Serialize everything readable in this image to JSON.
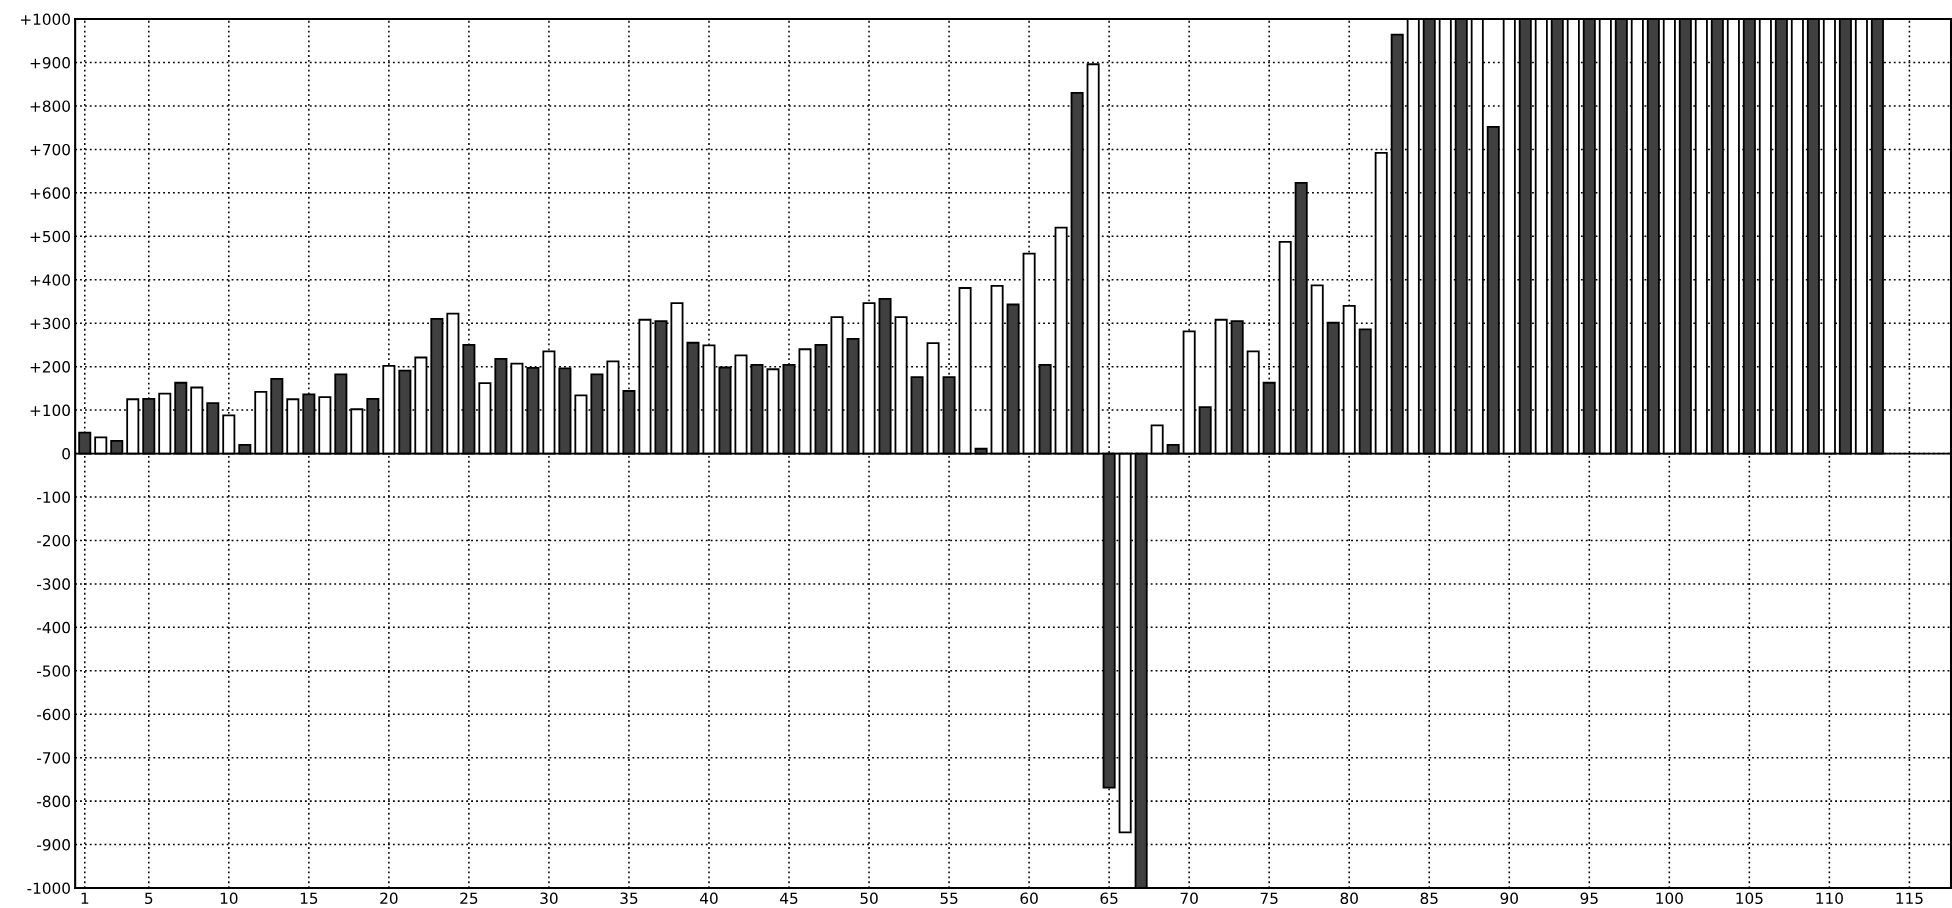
{
  "chart_data": {
    "type": "bar",
    "series": [
      {
        "color": "#404040",
        "x": [
          1,
          3,
          5,
          7,
          9,
          11,
          13,
          15,
          17,
          19,
          21,
          23,
          25,
          27,
          29,
          31,
          33,
          35,
          37,
          39,
          41,
          43,
          45,
          47,
          49,
          51,
          53,
          55,
          57,
          59,
          61,
          63,
          65,
          67,
          69,
          71,
          73,
          75,
          77,
          79,
          81,
          83,
          85,
          87,
          89,
          91,
          93,
          95,
          97,
          99,
          101,
          103,
          105,
          107,
          109,
          111,
          113
        ],
        "values": [
          48,
          29,
          126,
          163,
          116,
          20,
          172,
          136,
          182,
          126,
          191,
          310,
          250,
          218,
          197,
          196,
          182,
          144,
          305,
          255,
          198,
          204,
          204,
          250,
          264,
          356,
          176,
          176,
          11,
          343,
          204,
          830,
          -769,
          -1000,
          20,
          107,
          305,
          163,
          623,
          301,
          286,
          964,
          1000,
          1000,
          752,
          1000,
          1000,
          1000,
          1000,
          1000,
          1000,
          1000,
          1000,
          1000,
          1000,
          1000,
          1000
        ]
      },
      {
        "color": "#ffffff",
        "x": [
          2,
          4,
          6,
          8,
          10,
          12,
          14,
          16,
          18,
          20,
          22,
          24,
          26,
          28,
          30,
          32,
          34,
          36,
          38,
          40,
          42,
          44,
          46,
          48,
          50,
          52,
          54,
          56,
          58,
          60,
          62,
          64,
          66,
          68,
          70,
          72,
          74,
          76,
          78,
          80,
          82,
          84,
          86,
          88,
          90,
          92,
          94,
          96,
          98,
          100,
          102,
          104,
          106,
          108,
          110,
          112
        ],
        "values": [
          37,
          125,
          138,
          152,
          88,
          142,
          125,
          130,
          102,
          202,
          221,
          322,
          162,
          207,
          235,
          134,
          212,
          308,
          346,
          249,
          226,
          194,
          240,
          314,
          346,
          314,
          254,
          381,
          386,
          460,
          520,
          896,
          -872,
          65,
          281,
          308,
          235,
          487,
          387,
          340,
          692,
          1000,
          1000,
          1000,
          1000,
          1000,
          1000,
          1000,
          1000,
          1000,
          1000,
          1000,
          1000,
          1000,
          1000,
          1000
        ]
      }
    ],
    "xlim": [
      0.4,
      117.6
    ],
    "xticks": [
      1,
      5,
      10,
      15,
      20,
      25,
      30,
      35,
      40,
      45,
      50,
      55,
      60,
      65,
      70,
      75,
      80,
      85,
      90,
      95,
      100,
      105,
      110,
      115
    ],
    "ylim": [
      -1000,
      1000
    ],
    "yticks": [
      {
        "value": -1000,
        "label": "-1000"
      },
      {
        "value": -900,
        "label": "-900"
      },
      {
        "value": -800,
        "label": "-800"
      },
      {
        "value": -700,
        "label": "-700"
      },
      {
        "value": -600,
        "label": "-600"
      },
      {
        "value": -500,
        "label": "-500"
      },
      {
        "value": -400,
        "label": "-400"
      },
      {
        "value": -300,
        "label": "-300"
      },
      {
        "value": -200,
        "label": "-200"
      },
      {
        "value": -100,
        "label": "-100"
      },
      0,
      {
        "value": 100,
        "label": "+100"
      },
      {
        "value": 200,
        "label": "+200"
      },
      {
        "value": 300,
        "label": "+300"
      },
      {
        "value": 400,
        "label": "+400"
      },
      {
        "value": 500,
        "label": "+500"
      },
      {
        "value": 600,
        "label": "+600"
      },
      {
        "value": 700,
        "label": "+700"
      },
      {
        "value": 800,
        "label": "+800"
      },
      {
        "value": 900,
        "label": "+900"
      },
      {
        "value": 1000,
        "label": "+1000"
      }
    ],
    "grid": true
  }
}
